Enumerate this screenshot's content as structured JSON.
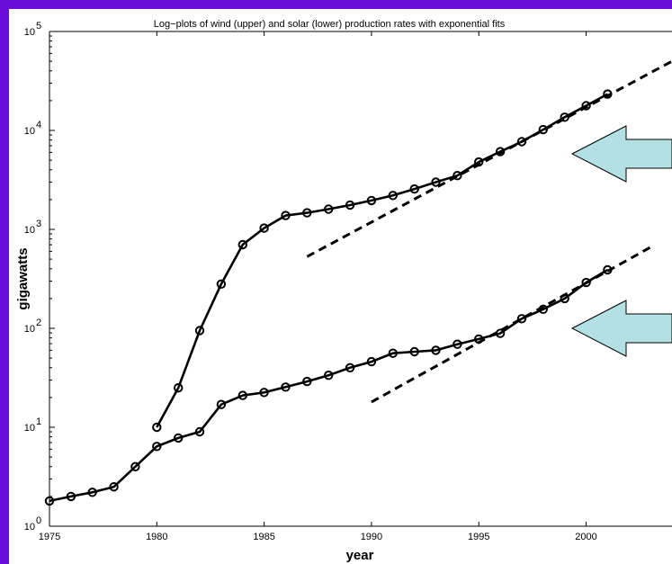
{
  "chart_data": {
    "type": "line",
    "title": "Log−plots of wind (upper) and solar (lower) production rates with exponential fits",
    "xlabel": "year",
    "ylabel": "gigawatts",
    "xlim": [
      1975,
      2004
    ],
    "ylim": [
      1,
      100000
    ],
    "yscale": "log",
    "xticks": [
      1975,
      1980,
      1985,
      1990,
      1995,
      2000
    ],
    "yticks": [
      {
        "value": 1,
        "base": "10",
        "exp": "0"
      },
      {
        "value": 10,
        "base": "10",
        "exp": "1"
      },
      {
        "value": 100,
        "base": "10",
        "exp": "2"
      },
      {
        "value": 1000,
        "base": "10",
        "exp": "3"
      },
      {
        "value": 10000,
        "base": "10",
        "exp": "4"
      },
      {
        "value": 100000,
        "base": "10",
        "exp": "5"
      }
    ],
    "grid": false,
    "series": [
      {
        "name": "wind (upper)",
        "style": "solid-with-circle-markers",
        "x": [
          1980,
          1981,
          1982,
          1983,
          1984,
          1985,
          1986,
          1987,
          1988,
          1989,
          1990,
          1991,
          1992,
          1993,
          1994,
          1995,
          1996,
          1997,
          1998,
          1999,
          2000,
          2001
        ],
        "y": [
          10,
          25,
          95,
          280,
          700,
          1030,
          1380,
          1470,
          1600,
          1760,
          1960,
          2200,
          2560,
          3000,
          3500,
          4800,
          6100,
          7700,
          10200,
          13600,
          17800,
          23300
        ]
      },
      {
        "name": "solar (lower)",
        "style": "solid-with-circle-markers",
        "x": [
          1975,
          1976,
          1977,
          1978,
          1979,
          1980,
          1981,
          1982,
          1983,
          1984,
          1985,
          1986,
          1987,
          1988,
          1989,
          1990,
          1991,
          1992,
          1993,
          1994,
          1995,
          1996,
          1997,
          1998,
          1999,
          2000,
          2001
        ],
        "y": [
          1.8,
          2.0,
          2.2,
          2.5,
          4.0,
          6.4,
          7.8,
          9.0,
          17,
          21,
          22.5,
          25.5,
          29,
          33.5,
          40,
          46,
          56,
          58,
          60,
          69,
          78,
          89,
          125,
          156,
          200,
          290,
          390
        ]
      },
      {
        "name": "wind exponential fit",
        "style": "dashed",
        "x": [
          1987,
          2004
        ],
        "y": [
          530,
          50000
        ]
      },
      {
        "name": "solar exponential fit",
        "style": "dashed",
        "x": [
          1990,
          2003
        ],
        "y": [
          18,
          660
        ]
      }
    ],
    "annotations": [
      {
        "type": "arrow",
        "points_to": "wind (upper)",
        "fill": "#b2e0e4"
      },
      {
        "type": "arrow",
        "points_to": "solar (lower)",
        "fill": "#b2e0e4"
      }
    ]
  },
  "colors": {
    "background_border": "#6a0dd8",
    "plot_background": "#ffffff",
    "line": "#000000",
    "arrow_fill": "#b2e0e4"
  }
}
